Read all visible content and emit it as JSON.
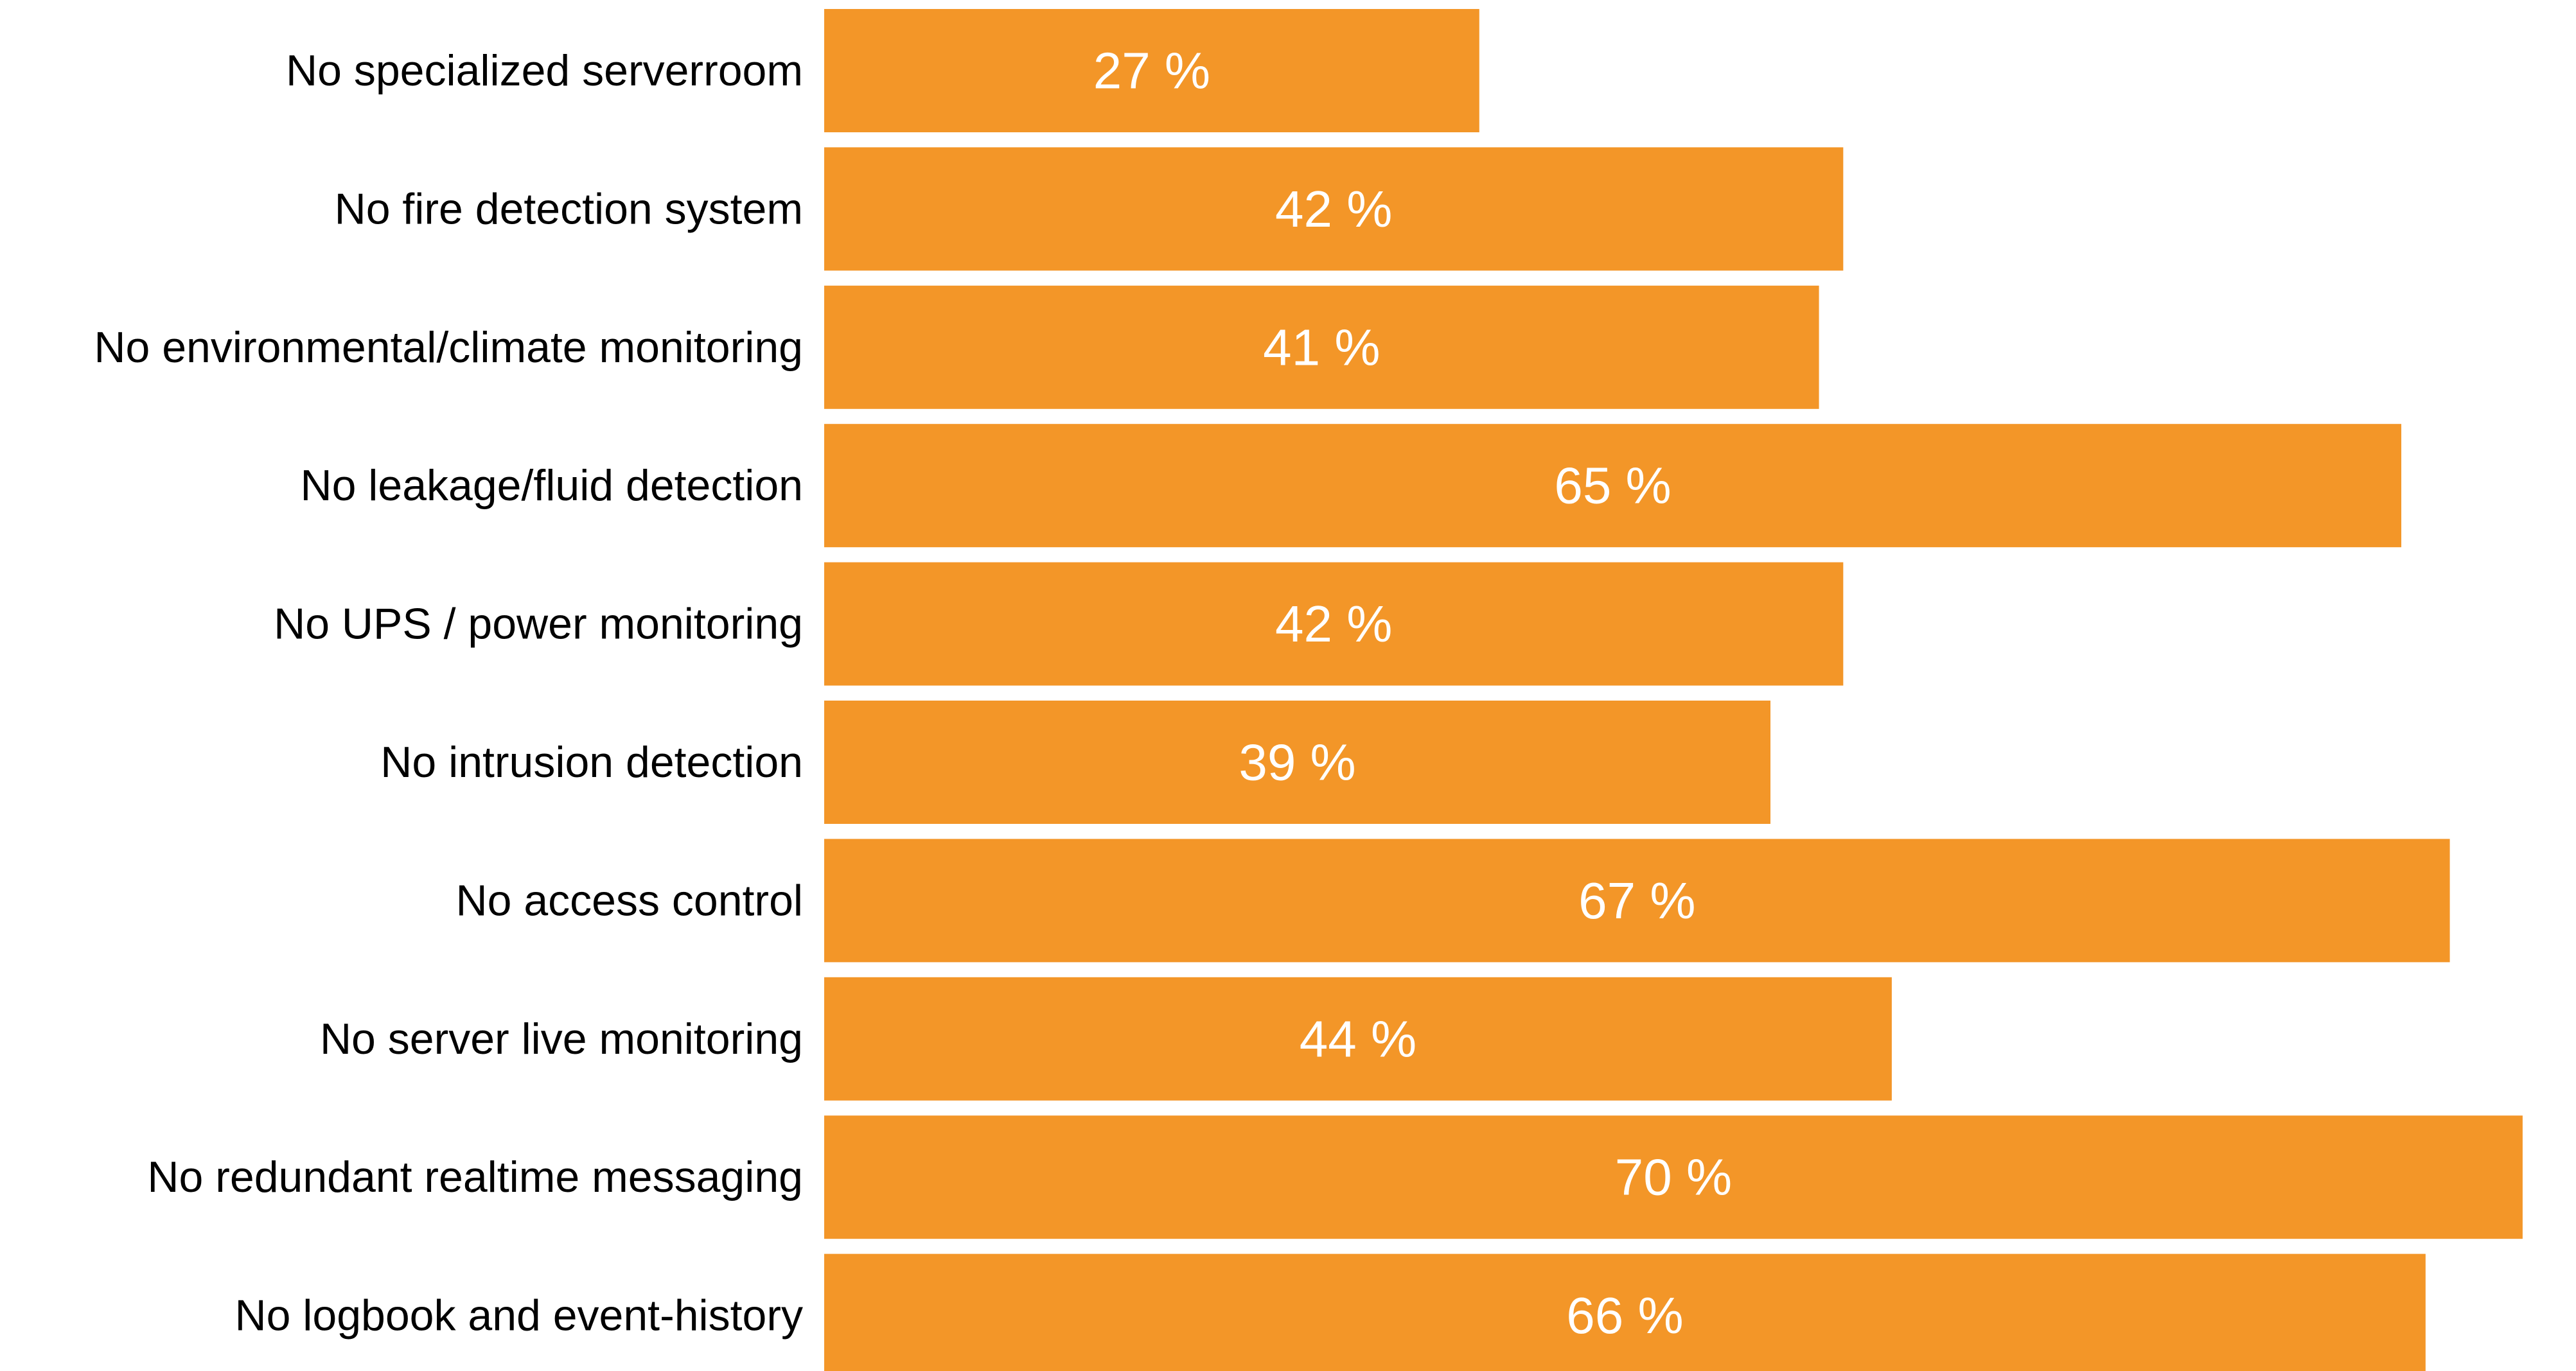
{
  "colors": {
    "bar": "#f39628",
    "background": "#ffffff",
    "label": "#000000",
    "value_label": "#ffffff"
  },
  "chart_data": {
    "type": "bar",
    "orientation": "horizontal",
    "categories": [
      "No specialized serverroom",
      "No fire detection system",
      "No environmental/climate monitoring",
      "No leakage/fluid detection",
      "No UPS / power monitoring",
      "No intrusion detection",
      "No access control",
      "No server live monitoring",
      "No redundant realtime messaging",
      "No logbook and event-history"
    ],
    "values": [
      27,
      42,
      41,
      65,
      42,
      39,
      67,
      44,
      70,
      66
    ],
    "value_labels": [
      "27 %",
      "42 %",
      "41 %",
      "65 %",
      "42 %",
      "39 %",
      "67 %",
      "44 %",
      "70 %",
      "66 %"
    ],
    "unit": "%",
    "title": "",
    "xlabel": "",
    "ylabel": "",
    "grid": false,
    "legend": "none"
  }
}
